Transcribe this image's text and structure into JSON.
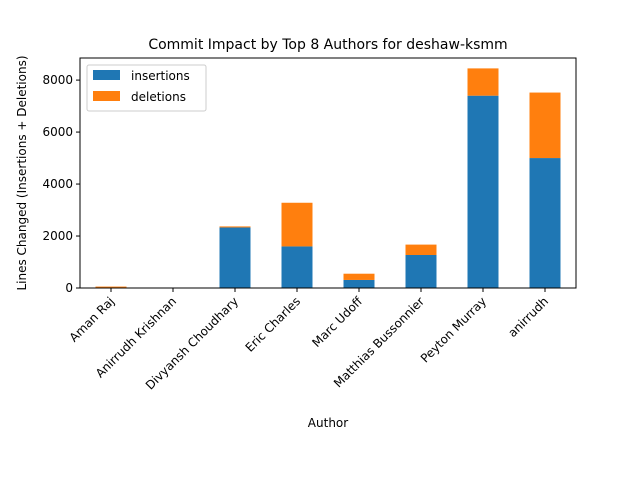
{
  "chart_data": {
    "type": "bar",
    "stacked": true,
    "title": "Commit Impact by Top 8 Authors for deshaw-ksmm",
    "xlabel": "Author",
    "ylabel": "Lines Changed (Insertions + Deletions)",
    "ylim": [
      0,
      8850
    ],
    "yticks": [
      0,
      2000,
      4000,
      6000,
      8000
    ],
    "grid": false,
    "legend_position": "top-left",
    "categories": [
      "Aman Raj",
      "Anirrudh Krishnan",
      "Divyansh Choudhary",
      "Eric Charles",
      "Marc Udoff",
      "Matthias Bussonnier",
      "Peyton Murray",
      "anirrudh"
    ],
    "series": [
      {
        "name": "insertions",
        "color": "#1f77b4",
        "values": [
          20,
          5,
          2330,
          1600,
          310,
          1270,
          7400,
          5000
        ]
      },
      {
        "name": "deletions",
        "color": "#ff7f0e",
        "values": [
          35,
          5,
          40,
          1680,
          240,
          400,
          1050,
          2520
        ]
      }
    ]
  }
}
